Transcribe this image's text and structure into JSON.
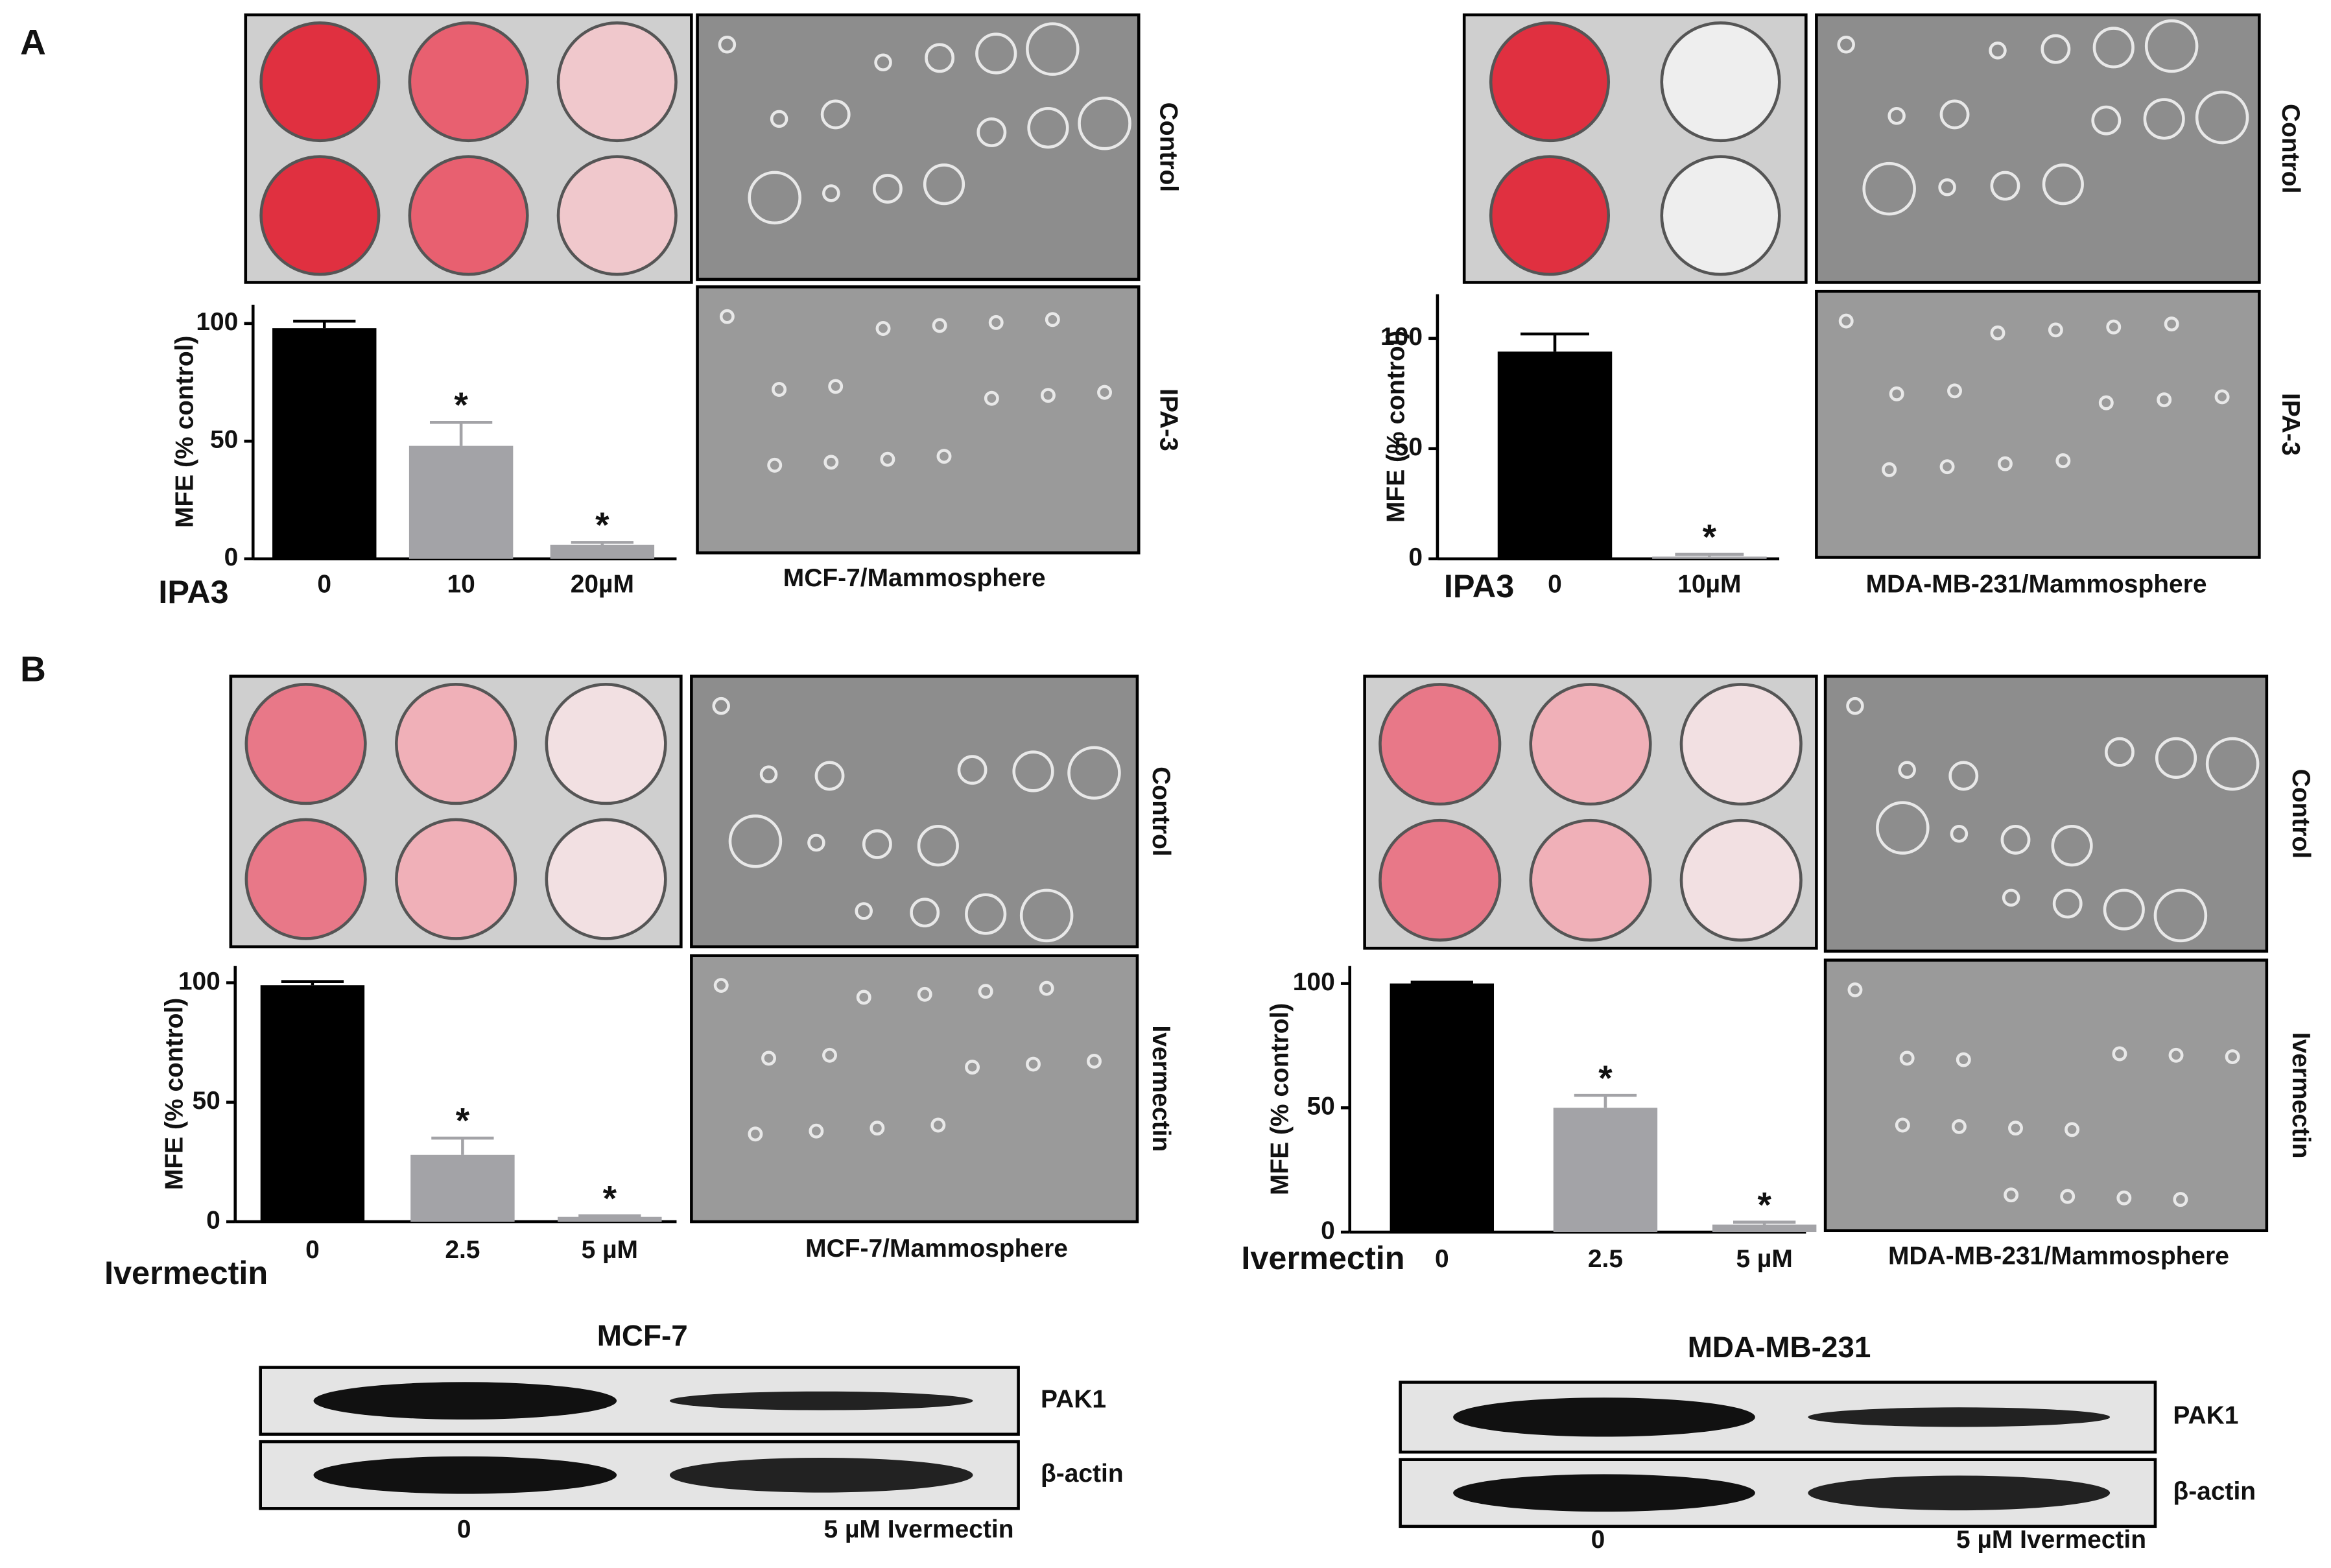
{
  "chart_data": [
    {
      "type": "bar",
      "y_label": "MFE (% control)",
      "x_label": "IPA3",
      "categories": [
        "0",
        "10",
        "20µM"
      ],
      "values": [
        98,
        48,
        6
      ],
      "errors": [
        3,
        10,
        1
      ],
      "annotations": [
        null,
        "*",
        "*"
      ],
      "colors": [
        "#000000",
        "#a3a3a7",
        "#a3a3a7"
      ],
      "ylim": [
        0,
        108
      ],
      "yticks": [
        0,
        50,
        100
      ]
    },
    {
      "type": "bar",
      "y_label": "MFE (% control)",
      "x_label": "IPA3",
      "categories": [
        "0",
        "10µM"
      ],
      "values": [
        94,
        1
      ],
      "errors": [
        8,
        1
      ],
      "annotations": [
        null,
        "*"
      ],
      "colors": [
        "#000000",
        "#a3a3a7"
      ],
      "ylim": [
        0,
        120
      ],
      "yticks": [
        0,
        50,
        100
      ]
    },
    {
      "type": "bar",
      "y_label": "MFE (% control)",
      "x_label": "Ivermectin",
      "categories": [
        "0",
        "2.5",
        "5 µM"
      ],
      "values": [
        99,
        28,
        2
      ],
      "errors": [
        1.5,
        7,
        0.5
      ],
      "annotations": [
        null,
        "*",
        "*"
      ],
      "colors": [
        "#000000",
        "#a3a3a7",
        "#a3a3a7"
      ],
      "ylim": [
        0,
        107
      ],
      "yticks": [
        0,
        50,
        100
      ]
    },
    {
      "type": "bar",
      "y_label": "MFE (% control)",
      "x_label": "Ivermectin",
      "categories": [
        "0",
        "2.5",
        "5 µM"
      ],
      "values": [
        100,
        50,
        3
      ],
      "errors": [
        0.5,
        5,
        1
      ],
      "annotations": [
        null,
        "*",
        "*"
      ],
      "colors": [
        "#000000",
        "#a3a3a7",
        "#a3a3a7"
      ],
      "ylim": [
        0,
        107
      ],
      "yticks": [
        0,
        50,
        100
      ]
    }
  ],
  "panels": [
    "A",
    "B"
  ],
  "microscopy": [
    {
      "caption": "MCF-7/Mammosphere",
      "conditions": [
        "Control",
        "IPA-3"
      ]
    },
    {
      "caption": "MDA-MB-231/Mammosphere",
      "conditions": [
        "Control",
        "IPA-3"
      ]
    },
    {
      "caption": "MCF-7/Mammosphere",
      "conditions": [
        "Control",
        "Ivermectin"
      ]
    },
    {
      "caption": "MDA-MB-231/Mammosphere",
      "conditions": [
        "Control",
        "Ivermectin"
      ]
    }
  ],
  "western_blots": [
    {
      "title": "MCF-7",
      "bands": [
        "PAK1",
        "β-actin"
      ],
      "lanes": [
        "0",
        "5 µM Ivermectin"
      ]
    },
    {
      "title": "MDA-MB-231",
      "bands": [
        "PAK1",
        "β-actin"
      ],
      "lanes": [
        "0",
        "5 µM Ivermectin"
      ]
    }
  ]
}
